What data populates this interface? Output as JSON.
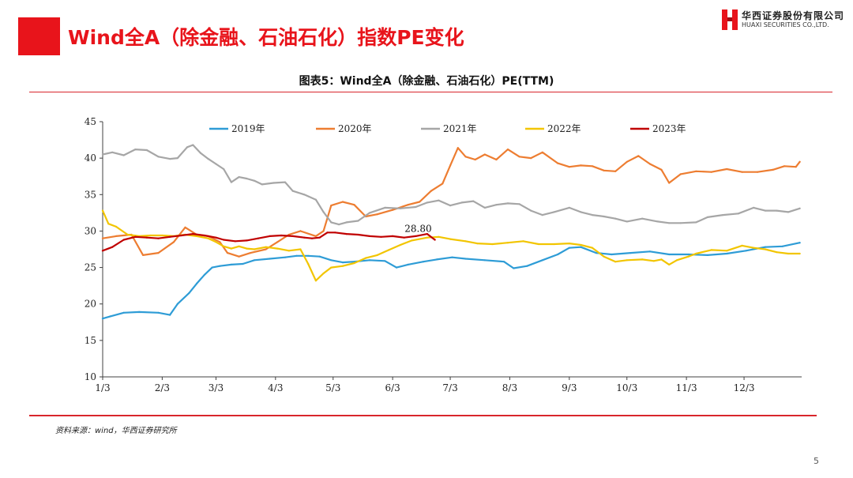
{
  "header": {
    "title": "Wind全A（除金融、石油石化）指数PE变化",
    "logo_cn": "华西证券股份有限公司",
    "logo_en": "HUAXI SECURITIES CO.,LTD."
  },
  "figure_title": "图表5：Wind全A（除金融、石油石化）PE(TTM)",
  "source": "资料来源：wind，华西证券研究所",
  "page_number": "5",
  "colors": {
    "brand_red": "#e8141b",
    "rule_red": "#d9262c",
    "axis": "#404040"
  },
  "chart_data": {
    "type": "line",
    "title": "图表5：Wind全A（除金融、石油石化）PE(TTM)",
    "xlabel": "",
    "ylabel": "",
    "xlim": [
      1,
      365
    ],
    "ylim": [
      10,
      45
    ],
    "yticks": [
      10,
      15,
      20,
      25,
      30,
      35,
      40,
      45
    ],
    "x_ticks": [
      {
        "day": 1,
        "label": "1/3"
      },
      {
        "day": 32,
        "label": "2/3"
      },
      {
        "day": 60,
        "label": "3/3"
      },
      {
        "day": 91,
        "label": "4/3"
      },
      {
        "day": 121,
        "label": "5/3"
      },
      {
        "day": 152,
        "label": "6/3"
      },
      {
        "day": 182,
        "label": "7/3"
      },
      {
        "day": 213,
        "label": "8/3"
      },
      {
        "day": 244,
        "label": "9/3"
      },
      {
        "day": 274,
        "label": "10/3"
      },
      {
        "day": 305,
        "label": "11/3"
      },
      {
        "day": 335,
        "label": "12/3"
      }
    ],
    "grid": false,
    "legend_position": "top",
    "series": [
      {
        "name": "2019年",
        "color": "#2e9cd6",
        "points": [
          [
            1,
            18
          ],
          [
            5,
            18.3
          ],
          [
            12,
            18.8
          ],
          [
            20,
            18.9
          ],
          [
            30,
            18.8
          ],
          [
            36,
            18.5
          ],
          [
            40,
            20
          ],
          [
            46,
            21.5
          ],
          [
            50,
            22.8
          ],
          [
            54,
            24
          ],
          [
            58,
            25
          ],
          [
            62,
            25.2
          ],
          [
            68,
            25.4
          ],
          [
            74,
            25.5
          ],
          [
            80,
            26
          ],
          [
            88,
            26.2
          ],
          [
            96,
            26.4
          ],
          [
            102,
            26.6
          ],
          [
            108,
            26.6
          ],
          [
            114,
            26.5
          ],
          [
            120,
            26
          ],
          [
            126,
            25.7
          ],
          [
            132,
            25.8
          ],
          [
            140,
            26
          ],
          [
            148,
            25.9
          ],
          [
            154,
            25
          ],
          [
            160,
            25.4
          ],
          [
            168,
            25.8
          ],
          [
            175,
            26.1
          ],
          [
            183,
            26.4
          ],
          [
            190,
            26.2
          ],
          [
            200,
            26
          ],
          [
            210,
            25.8
          ],
          [
            215,
            24.9
          ],
          [
            222,
            25.2
          ],
          [
            230,
            26
          ],
          [
            238,
            26.8
          ],
          [
            244,
            27.7
          ],
          [
            250,
            27.8
          ],
          [
            258,
            27
          ],
          [
            266,
            26.8
          ],
          [
            276,
            27
          ],
          [
            286,
            27.2
          ],
          [
            296,
            26.8
          ],
          [
            306,
            26.8
          ],
          [
            316,
            26.7
          ],
          [
            326,
            26.9
          ],
          [
            336,
            27.3
          ],
          [
            346,
            27.8
          ],
          [
            355,
            27.9
          ],
          [
            364,
            28.4
          ]
        ]
      },
      {
        "name": "2020年",
        "color": "#ed7d31",
        "points": [
          [
            1,
            29
          ],
          [
            8,
            29.3
          ],
          [
            16,
            29.5
          ],
          [
            22,
            26.7
          ],
          [
            30,
            27
          ],
          [
            38,
            28.5
          ],
          [
            44,
            30.5
          ],
          [
            50,
            29.5
          ],
          [
            56,
            29.3
          ],
          [
            62,
            28.5
          ],
          [
            66,
            27
          ],
          [
            72,
            26.5
          ],
          [
            78,
            27
          ],
          [
            86,
            27.5
          ],
          [
            92,
            28.5
          ],
          [
            98,
            29.5
          ],
          [
            104,
            30
          ],
          [
            112,
            29.3
          ],
          [
            116,
            30
          ],
          [
            120,
            33.5
          ],
          [
            126,
            34
          ],
          [
            132,
            33.6
          ],
          [
            138,
            32
          ],
          [
            144,
            32.3
          ],
          [
            152,
            32.9
          ],
          [
            160,
            33.6
          ],
          [
            166,
            34
          ],
          [
            172,
            35.5
          ],
          [
            178,
            36.5
          ],
          [
            182,
            39
          ],
          [
            186,
            41.4
          ],
          [
            190,
            40.2
          ],
          [
            195,
            39.8
          ],
          [
            200,
            40.5
          ],
          [
            206,
            39.8
          ],
          [
            212,
            41.2
          ],
          [
            218,
            40.2
          ],
          [
            224,
            40
          ],
          [
            230,
            40.8
          ],
          [
            238,
            39.3
          ],
          [
            244,
            38.8
          ],
          [
            250,
            39
          ],
          [
            256,
            38.9
          ],
          [
            262,
            38.3
          ],
          [
            268,
            38.2
          ],
          [
            274,
            39.5
          ],
          [
            280,
            40.3
          ],
          [
            286,
            39.2
          ],
          [
            292,
            38.4
          ],
          [
            296,
            36.6
          ],
          [
            302,
            37.8
          ],
          [
            310,
            38.2
          ],
          [
            318,
            38.1
          ],
          [
            326,
            38.5
          ],
          [
            334,
            38.1
          ],
          [
            342,
            38.1
          ],
          [
            350,
            38.4
          ],
          [
            356,
            38.9
          ],
          [
            362,
            38.8
          ],
          [
            364,
            39.5
          ]
        ]
      },
      {
        "name": "2021年",
        "color": "#a6a6a6",
        "points": [
          [
            1,
            40.5
          ],
          [
            6,
            40.8
          ],
          [
            12,
            40.4
          ],
          [
            18,
            41.2
          ],
          [
            24,
            41.1
          ],
          [
            30,
            40.2
          ],
          [
            36,
            39.9
          ],
          [
            40,
            40
          ],
          [
            45,
            41.5
          ],
          [
            48,
            41.8
          ],
          [
            52,
            40.7
          ],
          [
            56,
            39.9
          ],
          [
            60,
            39.2
          ],
          [
            64,
            38.5
          ],
          [
            68,
            36.7
          ],
          [
            72,
            37.4
          ],
          [
            76,
            37.2
          ],
          [
            80,
            36.9
          ],
          [
            84,
            36.4
          ],
          [
            90,
            36.6
          ],
          [
            96,
            36.7
          ],
          [
            100,
            35.5
          ],
          [
            106,
            35
          ],
          [
            112,
            34.3
          ],
          [
            116,
            32.6
          ],
          [
            120,
            31.2
          ],
          [
            124,
            30.9
          ],
          [
            128,
            31.2
          ],
          [
            134,
            31.4
          ],
          [
            140,
            32.5
          ],
          [
            148,
            33.2
          ],
          [
            156,
            33.1
          ],
          [
            164,
            33.3
          ],
          [
            170,
            33.9
          ],
          [
            176,
            34.2
          ],
          [
            182,
            33.5
          ],
          [
            188,
            33.9
          ],
          [
            194,
            34.1
          ],
          [
            200,
            33.2
          ],
          [
            206,
            33.6
          ],
          [
            212,
            33.8
          ],
          [
            218,
            33.7
          ],
          [
            224,
            32.8
          ],
          [
            230,
            32.2
          ],
          [
            236,
            32.6
          ],
          [
            244,
            33.2
          ],
          [
            250,
            32.6
          ],
          [
            256,
            32.2
          ],
          [
            262,
            32
          ],
          [
            268,
            31.7
          ],
          [
            274,
            31.3
          ],
          [
            282,
            31.7
          ],
          [
            290,
            31.3
          ],
          [
            296,
            31.1
          ],
          [
            302,
            31.1
          ],
          [
            310,
            31.2
          ],
          [
            316,
            31.9
          ],
          [
            324,
            32.2
          ],
          [
            332,
            32.4
          ],
          [
            340,
            33.2
          ],
          [
            346,
            32.8
          ],
          [
            352,
            32.8
          ],
          [
            358,
            32.6
          ],
          [
            364,
            33.1
          ]
        ]
      },
      {
        "name": "2022年",
        "color": "#f2c500",
        "points": [
          [
            1,
            32.8
          ],
          [
            4,
            31
          ],
          [
            8,
            30.6
          ],
          [
            14,
            29.5
          ],
          [
            20,
            29.3
          ],
          [
            26,
            29.4
          ],
          [
            32,
            29.4
          ],
          [
            38,
            29.3
          ],
          [
            44,
            29.5
          ],
          [
            50,
            29.3
          ],
          [
            56,
            29
          ],
          [
            60,
            28.5
          ],
          [
            64,
            27.9
          ],
          [
            68,
            27.6
          ],
          [
            72,
            27.9
          ],
          [
            76,
            27.6
          ],
          [
            80,
            27.5
          ],
          [
            86,
            27.8
          ],
          [
            92,
            27.6
          ],
          [
            98,
            27.3
          ],
          [
            104,
            27.5
          ],
          [
            108,
            25.5
          ],
          [
            112,
            23.2
          ],
          [
            116,
            24.2
          ],
          [
            120,
            25
          ],
          [
            126,
            25.2
          ],
          [
            132,
            25.6
          ],
          [
            138,
            26.3
          ],
          [
            144,
            26.7
          ],
          [
            150,
            27.4
          ],
          [
            156,
            28.1
          ],
          [
            162,
            28.7
          ],
          [
            170,
            29.1
          ],
          [
            176,
            29.2
          ],
          [
            182,
            28.9
          ],
          [
            190,
            28.6
          ],
          [
            196,
            28.3
          ],
          [
            204,
            28.2
          ],
          [
            212,
            28.4
          ],
          [
            220,
            28.6
          ],
          [
            228,
            28.2
          ],
          [
            236,
            28.2
          ],
          [
            244,
            28.3
          ],
          [
            250,
            28.1
          ],
          [
            256,
            27.7
          ],
          [
            262,
            26.5
          ],
          [
            268,
            25.8
          ],
          [
            274,
            26
          ],
          [
            282,
            26.1
          ],
          [
            288,
            25.9
          ],
          [
            292,
            26.1
          ],
          [
            296,
            25.4
          ],
          [
            300,
            26
          ],
          [
            306,
            26.5
          ],
          [
            310,
            26.9
          ],
          [
            318,
            27.4
          ],
          [
            326,
            27.3
          ],
          [
            334,
            28
          ],
          [
            340,
            27.7
          ],
          [
            346,
            27.5
          ],
          [
            352,
            27.1
          ],
          [
            358,
            26.9
          ],
          [
            364,
            26.9
          ]
        ]
      },
      {
        "name": "2023年",
        "color": "#c00000",
        "points": [
          [
            1,
            27.3
          ],
          [
            6,
            27.8
          ],
          [
            12,
            28.8
          ],
          [
            18,
            29.2
          ],
          [
            24,
            29.1
          ],
          [
            30,
            29
          ],
          [
            36,
            29.2
          ],
          [
            42,
            29.4
          ],
          [
            48,
            29.6
          ],
          [
            54,
            29.4
          ],
          [
            60,
            29.1
          ],
          [
            64,
            28.8
          ],
          [
            70,
            28.6
          ],
          [
            76,
            28.7
          ],
          [
            82,
            29
          ],
          [
            88,
            29.3
          ],
          [
            94,
            29.4
          ],
          [
            100,
            29.3
          ],
          [
            106,
            29.1
          ],
          [
            110,
            29
          ],
          [
            114,
            29.1
          ],
          [
            118,
            29.8
          ],
          [
            122,
            29.8
          ],
          [
            128,
            29.6
          ],
          [
            134,
            29.5
          ],
          [
            140,
            29.3
          ],
          [
            146,
            29.2
          ],
          [
            152,
            29.3
          ],
          [
            158,
            29.1
          ],
          [
            164,
            29.3
          ],
          [
            170,
            29.6
          ],
          [
            174,
            28.8
          ]
        ],
        "end_label": "28.80"
      }
    ]
  }
}
